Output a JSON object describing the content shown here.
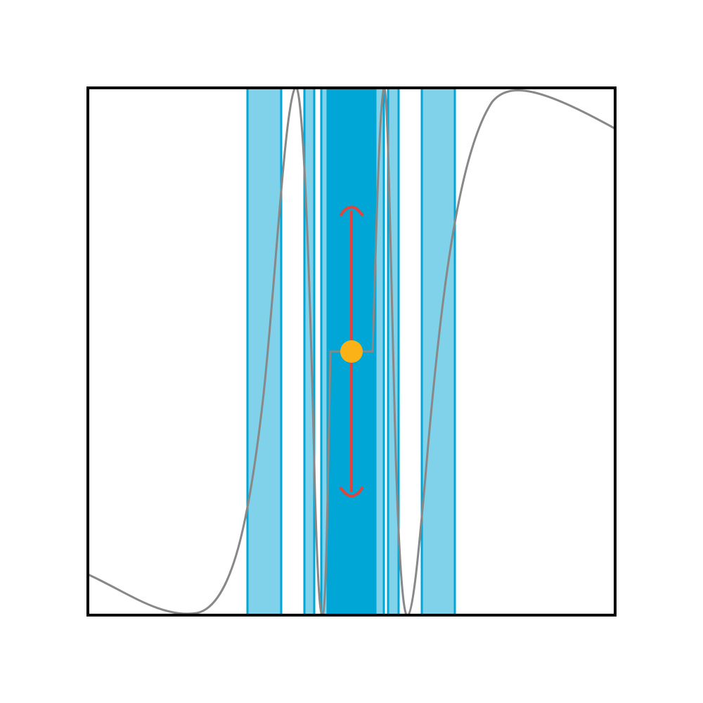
{
  "colors": {
    "background": "#ffffff",
    "frame": "#000000",
    "band_fill": "#7fd2ea",
    "band_fill_dense": "#00a6d6",
    "band_edge": "#00a6d6",
    "curve": "#888888",
    "arrow": "#e0443a",
    "center_dot": "#fbb216"
  },
  "icons": {
    "arrow_up": "arrowhead-up-icon",
    "arrow_down": "arrowhead-down-icon",
    "dot": "center-dot-icon"
  }
}
